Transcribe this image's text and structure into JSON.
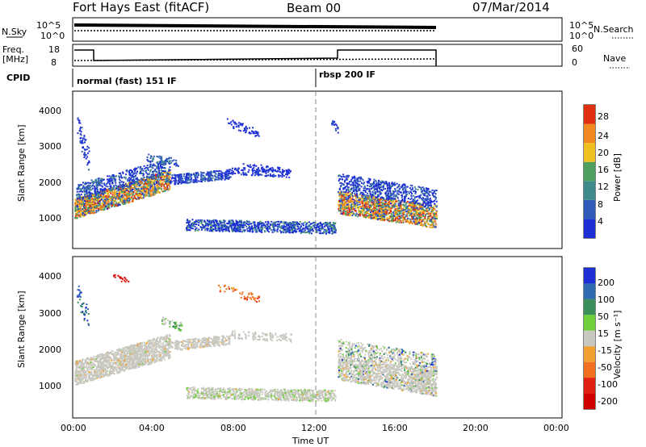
{
  "header": {
    "radar": "Fort Hays East (fitACF)",
    "beam": "Beam 00",
    "date": "07/Mar/2014"
  },
  "top_panels": {
    "nsky_label": "N.Sky",
    "nsearch_label": "N.Search",
    "noise_ticks_left": [
      "10^5",
      "10^0"
    ],
    "noise_ticks_right": [
      "10^5",
      "10^0"
    ],
    "freq_label_1": "Freq.",
    "freq_label_2": "[MHz]",
    "freq_ticks": [
      "18",
      "8"
    ],
    "nave_label": "Nave",
    "nave_ticks": [
      "60",
      "0"
    ],
    "cpid_label": "CPID",
    "cpid_modes": [
      "normal (fast) 151 IF",
      "rbsp 200 IF"
    ]
  },
  "chart_data": [
    {
      "type": "heatmap",
      "title": "",
      "ylabel": "Slant Range [km]",
      "xlabel": "",
      "y_ticks": [
        "1000",
        "2000",
        "3000",
        "4000"
      ],
      "ylim": [
        0,
        4500
      ],
      "colorbar": {
        "label": "Power [dB]",
        "ticks": [
          "4",
          "8",
          "12",
          "16",
          "20",
          "24",
          "28"
        ],
        "range": [
          0,
          30
        ],
        "colors": [
          "#1e2fd6",
          "#2f5cb8",
          "#3f8a8a",
          "#4f9f60",
          "#f0c020",
          "#f08a20",
          "#e03010"
        ]
      }
    },
    {
      "type": "heatmap",
      "title": "",
      "ylabel": "Slant Range [km]",
      "xlabel": "Time UT",
      "y_ticks": [
        "1000",
        "2000",
        "3000",
        "4000"
      ],
      "ylim": [
        0,
        4500
      ],
      "x_ticks": [
        "00:00",
        "04:00",
        "08:00",
        "12:00",
        "16:00",
        "20:00",
        "00:00"
      ],
      "colorbar": {
        "label": "Velocity [m s⁻¹]",
        "ticks": [
          "200",
          "100",
          "50",
          "15",
          "-15",
          "-50",
          "-100",
          "-200"
        ],
        "colors": [
          "#1e2fd6",
          "#2e6ab0",
          "#3a8f5a",
          "#6fcf3a",
          "#c8c8c0",
          "#f0a030",
          "#f07020",
          "#e02010",
          "#d00000"
        ]
      }
    }
  ]
}
